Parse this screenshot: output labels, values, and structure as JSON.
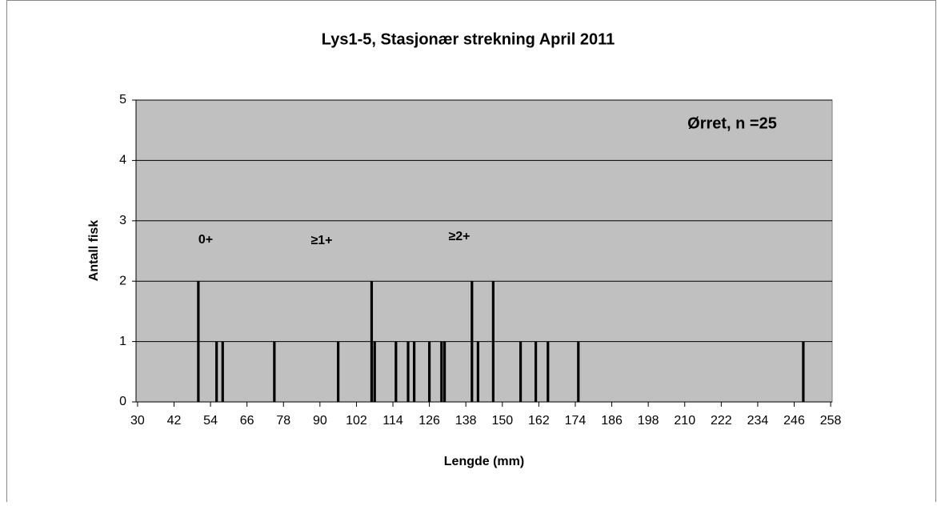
{
  "chart_data": {
    "type": "bar",
    "title": "Lys1-5, Stasjonær strekning April 2011",
    "xlabel": "Lengde (mm)",
    "ylabel": "Antall fisk",
    "annotations": [
      "Ørret, n =25",
      "0+",
      "≥1+",
      "≥2+"
    ],
    "x": [
      50,
      56,
      58,
      75,
      96,
      107,
      108,
      115,
      119,
      121,
      126,
      130,
      131,
      140,
      142,
      147,
      156,
      161,
      165,
      175,
      249
    ],
    "values": [
      2,
      1,
      1,
      1,
      1,
      2,
      1,
      1,
      1,
      1,
      1,
      1,
      1,
      2,
      1,
      2,
      1,
      1,
      1,
      1,
      1
    ],
    "color": "#000000",
    "xlim": [
      29.5,
      258.5
    ],
    "xticks": [
      30,
      42,
      54,
      66,
      78,
      90,
      102,
      114,
      126,
      138,
      150,
      162,
      174,
      186,
      198,
      210,
      222,
      234,
      246,
      258
    ],
    "ylim": [
      0,
      5
    ],
    "yticks": [
      0,
      1,
      2,
      3,
      4,
      5
    ],
    "grid": true,
    "plot_background": "#c0c0c0"
  }
}
